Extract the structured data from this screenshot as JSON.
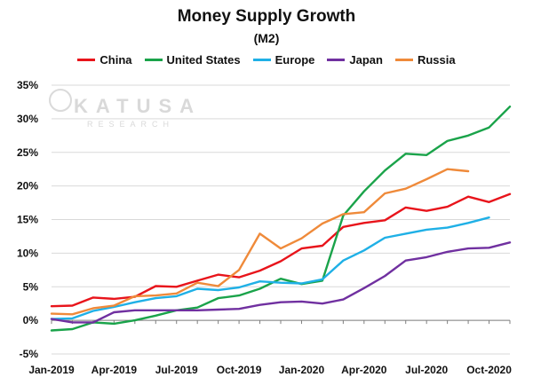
{
  "chart_data": {
    "type": "line",
    "title": "Money Supply Growth",
    "subtitle": "(M2)",
    "xlabel": "",
    "ylabel": "",
    "ylim": [
      -5,
      35
    ],
    "y_ticks": [
      -5,
      0,
      5,
      10,
      15,
      20,
      25,
      30,
      35
    ],
    "y_tick_labels": [
      "-5%",
      "0%",
      "5%",
      "10%",
      "15%",
      "20%",
      "25%",
      "30%",
      "35%"
    ],
    "x_tick_labels": [
      {
        "index": 0,
        "label": "Jan-2019"
      },
      {
        "index": 3,
        "label": "Apr-2019"
      },
      {
        "index": 6,
        "label": "Jul-2019"
      },
      {
        "index": 9,
        "label": "Oct-2019"
      },
      {
        "index": 12,
        "label": "Jan-2020"
      },
      {
        "index": 15,
        "label": "Apr-2020"
      },
      {
        "index": 18,
        "label": "Jul-2020"
      },
      {
        "index": 21,
        "label": "Oct-2020"
      }
    ],
    "months": [
      "Jan-2019",
      "Feb-2019",
      "Mar-2019",
      "Apr-2019",
      "May-2019",
      "Jun-2019",
      "Jul-2019",
      "Aug-2019",
      "Sep-2019",
      "Oct-2019",
      "Nov-2019",
      "Dec-2019",
      "Jan-2020",
      "Feb-2020",
      "Mar-2020",
      "Apr-2020",
      "May-2020",
      "Jun-2020",
      "Jul-2020",
      "Aug-2020",
      "Sep-2020",
      "Oct-2020",
      "Nov-2020"
    ],
    "legend_position": "top-center",
    "watermark": {
      "brand": "KATUSA",
      "tagline": "RESEARCH"
    },
    "series": [
      {
        "name": "China",
        "color": "#e8141b",
        "values": [
          2.1,
          2.2,
          3.4,
          3.2,
          3.5,
          5.1,
          5.0,
          5.9,
          6.8,
          6.4,
          7.4,
          8.8,
          10.7,
          11.1,
          13.9,
          14.5,
          14.9,
          16.8,
          16.3,
          16.9,
          18.4,
          17.6,
          18.8
        ]
      },
      {
        "name": "United States",
        "color": "#1aa34a",
        "values": [
          -1.5,
          -1.3,
          -0.3,
          -0.5,
          0.0,
          0.7,
          1.5,
          1.9,
          3.3,
          3.7,
          4.7,
          6.2,
          5.4,
          5.9,
          15.6,
          19.2,
          22.3,
          24.8,
          24.6,
          26.7,
          27.5,
          28.7,
          31.8
        ]
      },
      {
        "name": "Europe",
        "color": "#1fb0e6",
        "values": [
          0.2,
          0.3,
          1.4,
          2.0,
          2.7,
          3.3,
          3.6,
          4.7,
          4.5,
          4.9,
          5.8,
          5.6,
          5.5,
          6.1,
          8.9,
          10.4,
          12.3,
          12.9,
          13.5,
          13.8,
          14.5,
          15.3
        ]
      },
      {
        "name": "Japan",
        "color": "#7030a0",
        "values": [
          0.2,
          -0.3,
          -0.3,
          1.2,
          1.5,
          1.5,
          1.5,
          1.5,
          1.6,
          1.7,
          2.3,
          2.7,
          2.8,
          2.5,
          3.1,
          4.8,
          6.6,
          8.9,
          9.4,
          10.2,
          10.7,
          10.8,
          11.6
        ]
      },
      {
        "name": "Russia",
        "color": "#ef8a3a",
        "values": [
          1.0,
          0.9,
          1.8,
          2.2,
          3.6,
          3.7,
          4.0,
          5.6,
          5.1,
          7.5,
          12.9,
          10.7,
          12.2,
          14.4,
          15.8,
          16.1,
          18.9,
          19.6,
          21.0,
          22.5,
          22.2
        ]
      }
    ]
  }
}
